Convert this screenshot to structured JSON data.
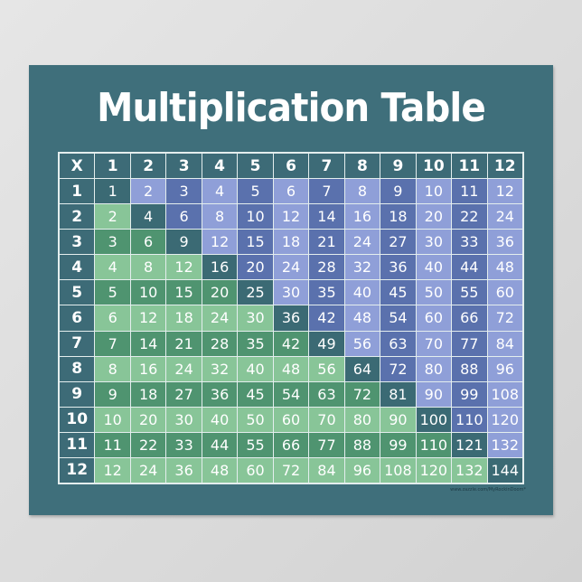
{
  "title": "Multiplication Table",
  "corner_label": "X",
  "headers": [
    1,
    2,
    3,
    4,
    5,
    6,
    7,
    8,
    9,
    10,
    11,
    12
  ],
  "credit": "www.zazzle.com/MyRockinDoom*",
  "colors": {
    "background": "#3f6f7b",
    "diagonal": "#3b6a74",
    "blue_light": "#8f9fd8",
    "blue_dark": "#5a71ad",
    "green_light": "#88c598",
    "green_dark": "#4f9470"
  },
  "rows": [
    [
      1,
      2,
      3,
      4,
      5,
      6,
      7,
      8,
      9,
      10,
      11,
      12
    ],
    [
      2,
      4,
      6,
      8,
      10,
      12,
      14,
      16,
      18,
      20,
      22,
      24
    ],
    [
      3,
      6,
      9,
      12,
      15,
      18,
      21,
      24,
      27,
      30,
      33,
      36
    ],
    [
      4,
      8,
      12,
      16,
      20,
      24,
      28,
      32,
      36,
      40,
      44,
      48
    ],
    [
      5,
      10,
      15,
      20,
      25,
      30,
      35,
      40,
      45,
      50,
      55,
      60
    ],
    [
      6,
      12,
      18,
      24,
      30,
      36,
      42,
      48,
      54,
      60,
      66,
      72
    ],
    [
      7,
      14,
      21,
      28,
      35,
      42,
      49,
      56,
      63,
      70,
      77,
      84
    ],
    [
      8,
      16,
      24,
      32,
      40,
      48,
      56,
      64,
      72,
      80,
      88,
      96
    ],
    [
      9,
      18,
      27,
      36,
      45,
      54,
      63,
      72,
      81,
      90,
      99,
      108
    ],
    [
      10,
      20,
      30,
      40,
      50,
      60,
      70,
      80,
      90,
      100,
      110,
      120
    ],
    [
      11,
      22,
      33,
      44,
      55,
      66,
      77,
      88,
      99,
      110,
      121,
      132
    ],
    [
      12,
      24,
      36,
      48,
      60,
      72,
      84,
      96,
      108,
      120,
      132,
      144
    ]
  ]
}
